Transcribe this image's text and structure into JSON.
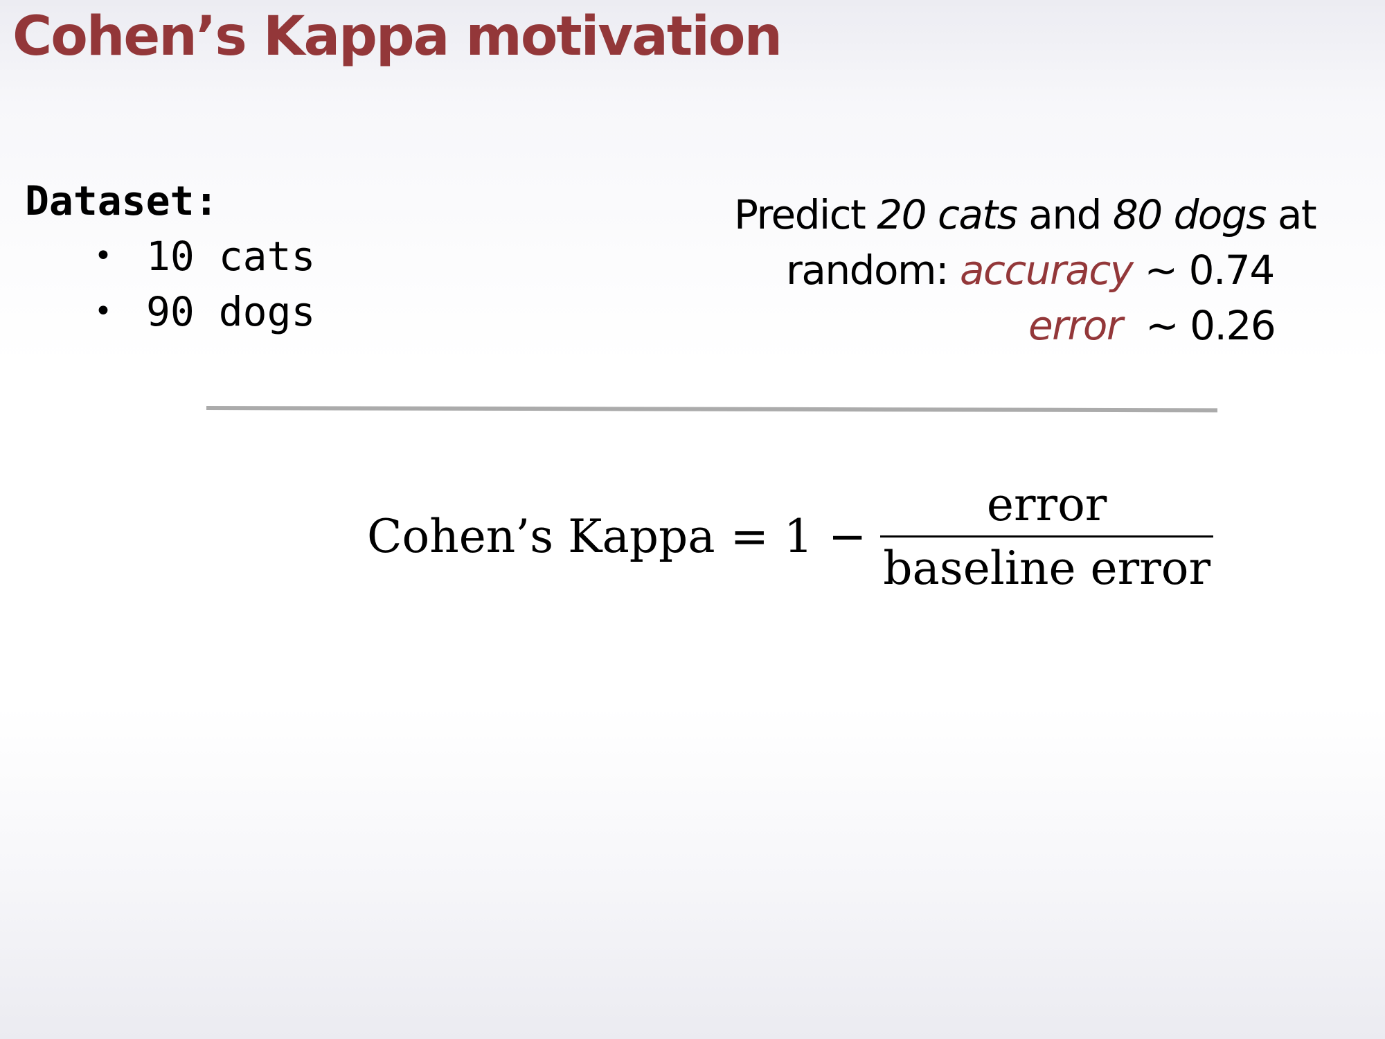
{
  "slide": {
    "title": "Cohen’s Kappa motivation"
  },
  "dataset": {
    "heading": "Dataset:",
    "items": [
      "10 cats",
      "90 dogs"
    ]
  },
  "predict": {
    "w1": "Predict ",
    "w2": "20 cats",
    "w3": " and ",
    "w4": "80 dogs",
    "w5": " at",
    "w6": "random: ",
    "w7": "accuracy",
    "w8": " ~ 0.74",
    "w9": "error",
    "w10": "  ~ 0.26"
  },
  "formula": {
    "lhs": "Cohen’s Kappa",
    "equals": "=",
    "one": "1",
    "minus": "−",
    "numerator": "error",
    "denominator": "baseline error"
  },
  "colors": {
    "accent": "#933739",
    "divider": "#ababab"
  }
}
